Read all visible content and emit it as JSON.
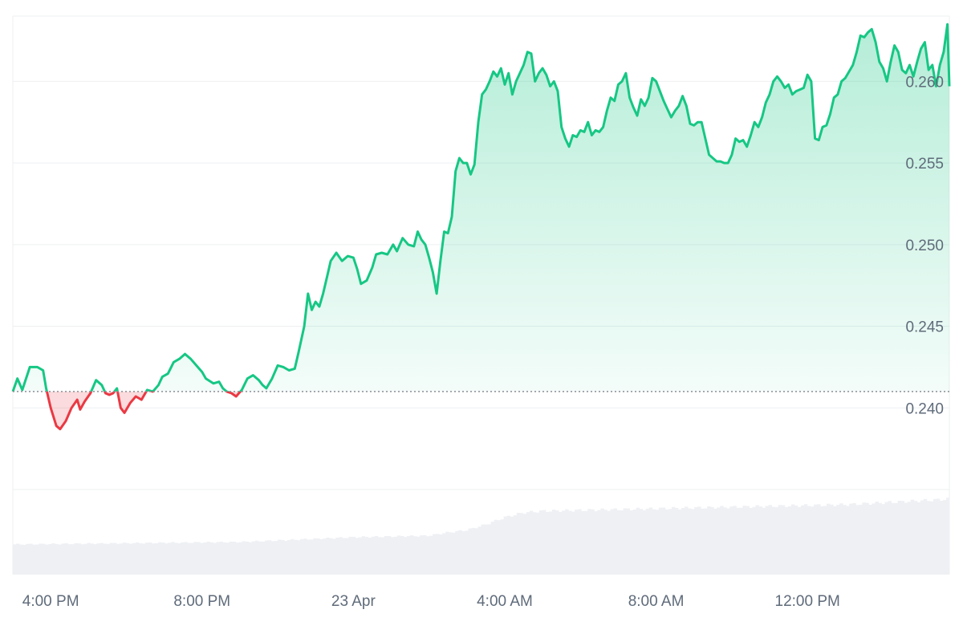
{
  "chart_data": {
    "type": "area",
    "title": "",
    "xlabel": "",
    "ylabel": "",
    "ylim": [
      0.235,
      0.264
    ],
    "y_ticks": [
      "0.240",
      "0.245",
      "0.250",
      "0.255",
      "0.260"
    ],
    "y_tick_values": [
      0.24,
      0.245,
      0.25,
      0.255,
      0.26
    ],
    "x_tick_labels": [
      "4:00 PM",
      "8:00 PM",
      "23 Apr",
      "4:00 AM",
      "8:00 AM",
      "12:00 PM"
    ],
    "x_tick_hours": [
      1.0,
      5.0,
      9.0,
      13.0,
      17.0,
      21.0
    ],
    "x_range_hours": [
      0,
      24.75
    ],
    "baseline": 0.241,
    "grid": true,
    "colors": {
      "up": "#16c784",
      "down": "#ea3943",
      "volume": "#eef0f4",
      "grid": "#eeeff2"
    },
    "series": [
      {
        "points": [
          [
            0.0,
            0.241
          ],
          [
            0.12,
            0.2418
          ],
          [
            0.25,
            0.2411
          ],
          [
            0.45,
            0.2425
          ],
          [
            0.65,
            0.2425
          ],
          [
            0.8,
            0.2423
          ],
          [
            0.88,
            0.2412
          ],
          [
            1.0,
            0.24
          ],
          [
            1.15,
            0.2389
          ],
          [
            1.25,
            0.2387
          ],
          [
            1.4,
            0.2392
          ],
          [
            1.55,
            0.24
          ],
          [
            1.7,
            0.2405
          ],
          [
            1.78,
            0.2399
          ],
          [
            1.9,
            0.2404
          ],
          [
            2.05,
            0.2409
          ],
          [
            2.2,
            0.2417
          ],
          [
            2.35,
            0.2414
          ],
          [
            2.45,
            0.2409
          ],
          [
            2.55,
            0.2408
          ],
          [
            2.65,
            0.2409
          ],
          [
            2.75,
            0.2412
          ],
          [
            2.85,
            0.24
          ],
          [
            2.95,
            0.2397
          ],
          [
            3.1,
            0.2403
          ],
          [
            3.25,
            0.2407
          ],
          [
            3.4,
            0.2405
          ],
          [
            3.55,
            0.2411
          ],
          [
            3.7,
            0.241
          ],
          [
            3.85,
            0.2414
          ],
          [
            3.95,
            0.2419
          ],
          [
            4.1,
            0.2421
          ],
          [
            4.25,
            0.2428
          ],
          [
            4.4,
            0.243
          ],
          [
            4.55,
            0.2433
          ],
          [
            4.7,
            0.243
          ],
          [
            4.85,
            0.2426
          ],
          [
            5.0,
            0.2422
          ],
          [
            5.1,
            0.2418
          ],
          [
            5.3,
            0.2415
          ],
          [
            5.45,
            0.2416
          ],
          [
            5.55,
            0.2412
          ],
          [
            5.65,
            0.241
          ],
          [
            5.78,
            0.2409
          ],
          [
            5.9,
            0.2407
          ],
          [
            6.05,
            0.2411
          ],
          [
            6.2,
            0.2418
          ],
          [
            6.35,
            0.242
          ],
          [
            6.5,
            0.2417
          ],
          [
            6.6,
            0.2414
          ],
          [
            6.7,
            0.2412
          ],
          [
            6.85,
            0.2418
          ],
          [
            7.0,
            0.2426
          ],
          [
            7.15,
            0.2425
          ],
          [
            7.3,
            0.2423
          ],
          [
            7.45,
            0.2424
          ],
          [
            7.55,
            0.2434
          ],
          [
            7.7,
            0.245
          ],
          [
            7.8,
            0.247
          ],
          [
            7.9,
            0.246
          ],
          [
            8.0,
            0.2465
          ],
          [
            8.1,
            0.2462
          ],
          [
            8.2,
            0.247
          ],
          [
            8.3,
            0.248
          ],
          [
            8.4,
            0.249
          ],
          [
            8.55,
            0.2495
          ],
          [
            8.7,
            0.249
          ],
          [
            8.85,
            0.2493
          ],
          [
            9.0,
            0.2492
          ],
          [
            9.1,
            0.2485
          ],
          [
            9.2,
            0.2476
          ],
          [
            9.35,
            0.2478
          ],
          [
            9.5,
            0.2486
          ],
          [
            9.6,
            0.2494
          ],
          [
            9.75,
            0.2495
          ],
          [
            9.9,
            0.2494
          ],
          [
            10.05,
            0.25
          ],
          [
            10.15,
            0.2496
          ],
          [
            10.3,
            0.2504
          ],
          [
            10.45,
            0.25
          ],
          [
            10.6,
            0.2499
          ],
          [
            10.7,
            0.2508
          ],
          [
            10.8,
            0.2503
          ],
          [
            10.9,
            0.25
          ],
          [
            11.0,
            0.2492
          ],
          [
            11.1,
            0.2483
          ],
          [
            11.2,
            0.247
          ],
          [
            11.3,
            0.249
          ],
          [
            11.4,
            0.2508
          ],
          [
            11.5,
            0.2507
          ],
          [
            11.6,
            0.2517
          ],
          [
            11.7,
            0.2545
          ],
          [
            11.8,
            0.2553
          ],
          [
            11.9,
            0.255
          ],
          [
            12.0,
            0.255
          ],
          [
            12.1,
            0.2543
          ],
          [
            12.2,
            0.2549
          ],
          [
            12.3,
            0.2575
          ],
          [
            12.4,
            0.2592
          ],
          [
            12.5,
            0.2595
          ],
          [
            12.6,
            0.26
          ],
          [
            12.7,
            0.2606
          ],
          [
            12.8,
            0.2603
          ],
          [
            12.9,
            0.2608
          ],
          [
            13.0,
            0.2598
          ],
          [
            13.1,
            0.2605
          ],
          [
            13.2,
            0.2592
          ],
          [
            13.3,
            0.26
          ],
          [
            13.4,
            0.2605
          ],
          [
            13.5,
            0.261
          ],
          [
            13.6,
            0.2618
          ],
          [
            13.7,
            0.2617
          ],
          [
            13.8,
            0.26
          ],
          [
            13.9,
            0.2605
          ],
          [
            14.0,
            0.2608
          ],
          [
            14.1,
            0.2604
          ],
          [
            14.2,
            0.2597
          ],
          [
            14.3,
            0.26
          ],
          [
            14.4,
            0.2594
          ],
          [
            14.5,
            0.2572
          ],
          [
            14.6,
            0.2565
          ],
          [
            14.7,
            0.256
          ],
          [
            14.8,
            0.2567
          ],
          [
            14.9,
            0.2566
          ],
          [
            15.0,
            0.257
          ],
          [
            15.1,
            0.2569
          ],
          [
            15.2,
            0.2575
          ],
          [
            15.3,
            0.2567
          ],
          [
            15.4,
            0.257
          ],
          [
            15.5,
            0.2569
          ],
          [
            15.6,
            0.2572
          ],
          [
            15.7,
            0.2582
          ],
          [
            15.8,
            0.259
          ],
          [
            15.9,
            0.2588
          ],
          [
            16.0,
            0.2598
          ],
          [
            16.1,
            0.26
          ],
          [
            16.2,
            0.2605
          ],
          [
            16.3,
            0.259
          ],
          [
            16.4,
            0.2584
          ],
          [
            16.5,
            0.2579
          ],
          [
            16.6,
            0.2589
          ],
          [
            16.7,
            0.2585
          ],
          [
            16.8,
            0.259
          ],
          [
            16.9,
            0.2602
          ],
          [
            17.0,
            0.26
          ],
          [
            17.1,
            0.2594
          ],
          [
            17.2,
            0.2588
          ],
          [
            17.3,
            0.2583
          ],
          [
            17.4,
            0.2578
          ],
          [
            17.5,
            0.2582
          ],
          [
            17.6,
            0.2585
          ],
          [
            17.7,
            0.2591
          ],
          [
            17.8,
            0.2585
          ],
          [
            17.9,
            0.2574
          ],
          [
            18.0,
            0.2573
          ],
          [
            18.1,
            0.2575
          ],
          [
            18.2,
            0.2575
          ],
          [
            18.3,
            0.2565
          ],
          [
            18.4,
            0.2555
          ],
          [
            18.5,
            0.2553
          ],
          [
            18.6,
            0.2551
          ],
          [
            18.7,
            0.2551
          ],
          [
            18.8,
            0.255
          ],
          [
            18.9,
            0.255
          ],
          [
            19.0,
            0.2555
          ],
          [
            19.1,
            0.2565
          ],
          [
            19.2,
            0.2563
          ],
          [
            19.3,
            0.2564
          ],
          [
            19.4,
            0.256
          ],
          [
            19.5,
            0.2567
          ],
          [
            19.6,
            0.2575
          ],
          [
            19.7,
            0.2572
          ],
          [
            19.8,
            0.2578
          ],
          [
            19.9,
            0.2587
          ],
          [
            20.0,
            0.2592
          ],
          [
            20.1,
            0.26
          ],
          [
            20.2,
            0.2603
          ],
          [
            20.3,
            0.26
          ],
          [
            20.4,
            0.2596
          ],
          [
            20.5,
            0.2598
          ],
          [
            20.6,
            0.2592
          ],
          [
            20.7,
            0.2594
          ],
          [
            20.8,
            0.2595
          ],
          [
            20.9,
            0.2596
          ],
          [
            21.0,
            0.2604
          ],
          [
            21.1,
            0.26
          ],
          [
            21.2,
            0.2565
          ],
          [
            21.3,
            0.2564
          ],
          [
            21.4,
            0.2572
          ],
          [
            21.5,
            0.2573
          ],
          [
            21.6,
            0.258
          ],
          [
            21.7,
            0.259
          ],
          [
            21.8,
            0.2592
          ],
          [
            21.9,
            0.26
          ],
          [
            22.0,
            0.2602
          ],
          [
            22.1,
            0.2606
          ],
          [
            22.2,
            0.261
          ],
          [
            22.3,
            0.2618
          ],
          [
            22.4,
            0.2628
          ],
          [
            22.5,
            0.2627
          ],
          [
            22.6,
            0.263
          ],
          [
            22.7,
            0.2632
          ],
          [
            22.8,
            0.2624
          ],
          [
            22.9,
            0.2612
          ],
          [
            23.0,
            0.2608
          ],
          [
            23.1,
            0.26
          ],
          [
            23.2,
            0.2612
          ],
          [
            23.3,
            0.2622
          ],
          [
            23.4,
            0.2618
          ],
          [
            23.5,
            0.2607
          ],
          [
            23.6,
            0.2605
          ],
          [
            23.7,
            0.261
          ],
          [
            23.8,
            0.2603
          ],
          [
            23.9,
            0.2612
          ],
          [
            24.0,
            0.262
          ],
          [
            24.1,
            0.2624
          ],
          [
            24.2,
            0.2607
          ],
          [
            24.3,
            0.261
          ],
          [
            24.4,
            0.2597
          ],
          [
            24.5,
            0.261
          ],
          [
            24.6,
            0.2618
          ],
          [
            24.7,
            0.2635
          ],
          [
            24.75,
            0.2597
          ]
        ]
      }
    ],
    "volume_levels": [
      [
        0.0,
        0.38
      ],
      [
        2.0,
        0.39
      ],
      [
        4.0,
        0.4
      ],
      [
        6.0,
        0.41
      ],
      [
        7.0,
        0.43
      ],
      [
        8.0,
        0.45
      ],
      [
        9.0,
        0.47
      ],
      [
        10.0,
        0.48
      ],
      [
        11.0,
        0.49
      ],
      [
        11.5,
        0.53
      ],
      [
        12.0,
        0.56
      ],
      [
        12.5,
        0.63
      ],
      [
        13.0,
        0.72
      ],
      [
        13.5,
        0.78
      ],
      [
        14.0,
        0.8
      ],
      [
        16.0,
        0.82
      ],
      [
        18.0,
        0.84
      ],
      [
        20.0,
        0.86
      ],
      [
        22.0,
        0.88
      ],
      [
        24.0,
        0.93
      ],
      [
        24.75,
        0.95
      ]
    ]
  }
}
